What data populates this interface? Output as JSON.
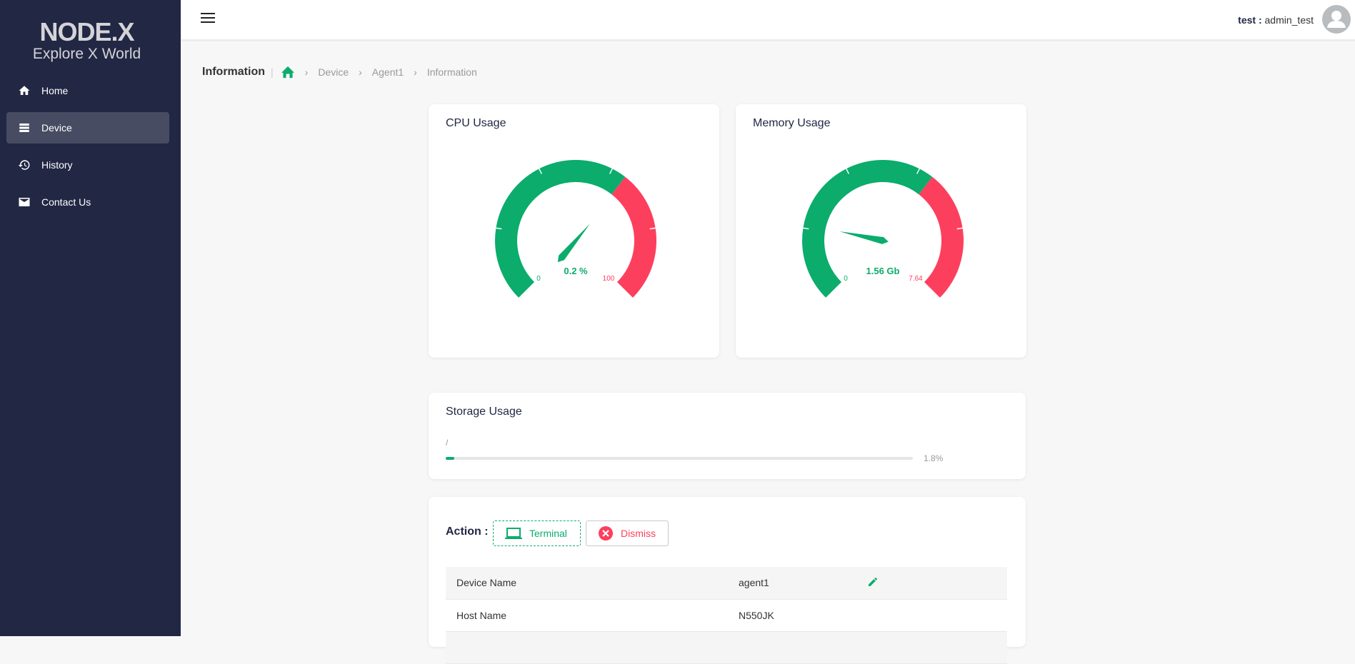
{
  "brand": {
    "name": "NODE.X",
    "tagline": "Explore X World"
  },
  "sidebar": {
    "items": [
      {
        "label": "Home",
        "icon": "home-icon"
      },
      {
        "label": "Device",
        "icon": "server-icon",
        "active": true
      },
      {
        "label": "History",
        "icon": "history-icon"
      },
      {
        "label": "Contact Us",
        "icon": "mail-icon"
      }
    ]
  },
  "header": {
    "user_name": "test",
    "separator": " : ",
    "user_role": "admin_test"
  },
  "breadcrumb": {
    "title": "Information",
    "items": [
      "Device",
      "Agent1",
      "Information"
    ]
  },
  "cpu": {
    "title": "CPU Usage",
    "value": 0.2,
    "value_label": "0.2 %",
    "min_label": "0",
    "max_label": "100",
    "min": 0,
    "max": 100,
    "red_from_fraction": 0.64
  },
  "memory": {
    "title": "Memory Usage",
    "value": 1.56,
    "value_label": "1.56 Gb",
    "min_label": "0",
    "max_label": "7.64",
    "min": 0,
    "max": 7.64,
    "red_from_fraction": 0.64
  },
  "colors": {
    "green": "#0bac6c",
    "red": "#fd3f5e",
    "navy": "#222744"
  },
  "storage": {
    "title": "Storage Usage",
    "mount": "/",
    "percent": 1.8,
    "percent_label": "1.8%"
  },
  "actions": {
    "label": "Action :",
    "terminal": "Terminal",
    "dismiss": "Dismiss"
  },
  "details": [
    {
      "key": "Device Name",
      "value": "agent1",
      "editable": true
    },
    {
      "key": "Host Name",
      "value": "N550JK"
    },
    {
      "key": "",
      "value": ""
    }
  ]
}
